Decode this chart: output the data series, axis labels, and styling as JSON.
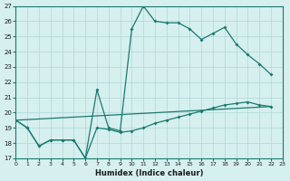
{
  "background_color": "#d6efef",
  "grid_color": "#b0d8d8",
  "line_color": "#1a7a6e",
  "xlabel": "Humidex (Indice chaleur)",
  "xlim": [
    0,
    23
  ],
  "ylim": [
    17,
    27
  ],
  "yticks": [
    17,
    18,
    19,
    20,
    21,
    22,
    23,
    24,
    25,
    26,
    27
  ],
  "xticks": [
    0,
    1,
    2,
    3,
    4,
    5,
    6,
    7,
    8,
    9,
    10,
    11,
    12,
    13,
    14,
    15,
    16,
    17,
    18,
    19,
    20,
    21,
    22,
    23
  ],
  "series": [
    {
      "x": [
        0,
        1,
        2,
        3,
        4,
        5,
        6,
        7,
        8,
        9,
        10,
        11,
        12,
        13,
        14,
        15,
        16,
        17,
        18,
        19,
        20,
        21,
        22
      ],
      "y": [
        19.5,
        19.0,
        17.8,
        18.2,
        18.2,
        18.2,
        17.0,
        21.5,
        19.0,
        18.8,
        25.5,
        27.0,
        26.0,
        25.9,
        25.9,
        25.5,
        24.8,
        25.2,
        25.6,
        24.5,
        23.8,
        23.2,
        22.5
      ],
      "markers": true
    },
    {
      "x": [
        0,
        1,
        2,
        3,
        4,
        5,
        6,
        7,
        8,
        9,
        10,
        11,
        12,
        13,
        14,
        15,
        16,
        17,
        18,
        19,
        20,
        21,
        22
      ],
      "y": [
        19.5,
        19.0,
        17.8,
        18.2,
        18.2,
        18.2,
        17.0,
        19.0,
        18.9,
        18.7,
        18.8,
        19.0,
        19.3,
        19.5,
        19.7,
        19.9,
        20.1,
        20.3,
        20.5,
        20.6,
        20.7,
        20.5,
        20.4
      ],
      "markers": true
    },
    {
      "x": [
        0,
        22
      ],
      "y": [
        19.5,
        20.4
      ],
      "markers": false
    }
  ]
}
